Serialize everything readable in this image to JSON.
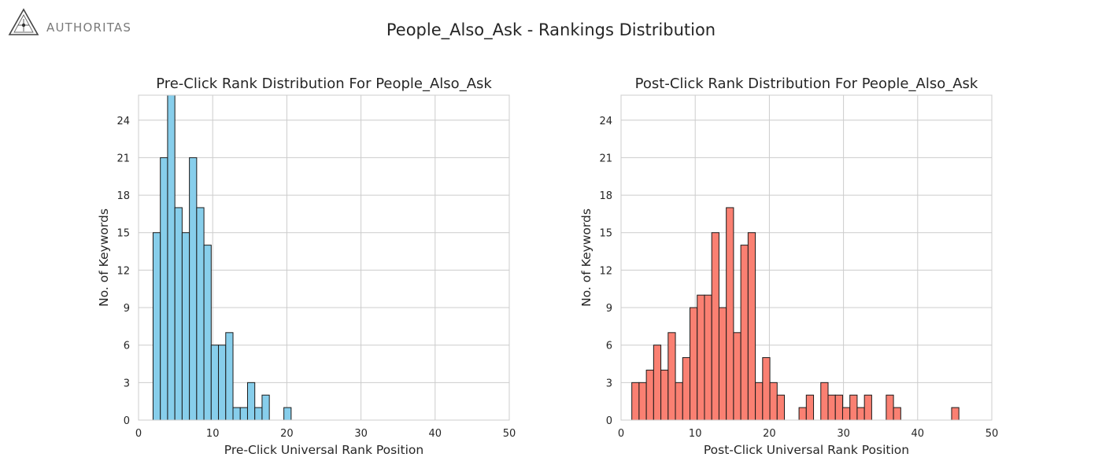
{
  "logo": {
    "text": "AUTHORITAS",
    "icon": "triangle-star-logo-icon"
  },
  "suptitle": "People_Also_Ask - Rankings Distribution",
  "chart_data": [
    {
      "type": "bar",
      "title": "Pre-Click Rank Distribution For People_Also_Ask",
      "xlabel": "Pre-Click Universal Rank Position",
      "ylabel": "No. of Keywords",
      "color": "#87ceeb",
      "xlim": [
        0,
        50
      ],
      "ylim": [
        0,
        26
      ],
      "xticks": [
        0,
        10,
        20,
        30,
        40,
        50
      ],
      "yticks": [
        0,
        3,
        6,
        9,
        12,
        15,
        18,
        21,
        24
      ],
      "grid": true,
      "bin_width": 0.98,
      "bins": [
        {
          "x": 1.96,
          "value": 15
        },
        {
          "x": 2.94,
          "value": 21
        },
        {
          "x": 3.92,
          "value": 26
        },
        {
          "x": 4.9,
          "value": 17
        },
        {
          "x": 5.88,
          "value": 15
        },
        {
          "x": 6.86,
          "value": 21
        },
        {
          "x": 7.84,
          "value": 17
        },
        {
          "x": 8.82,
          "value": 14
        },
        {
          "x": 9.8,
          "value": 6
        },
        {
          "x": 10.78,
          "value": 6
        },
        {
          "x": 11.76,
          "value": 7
        },
        {
          "x": 12.74,
          "value": 1
        },
        {
          "x": 13.72,
          "value": 1
        },
        {
          "x": 14.7,
          "value": 3
        },
        {
          "x": 15.68,
          "value": 1
        },
        {
          "x": 16.66,
          "value": 2
        },
        {
          "x": 19.6,
          "value": 1
        }
      ]
    },
    {
      "type": "bar",
      "title": "Post-Click Rank Distribution For People_Also_Ask",
      "xlabel": "Post-Click Universal Rank Position",
      "ylabel": "No. of Keywords",
      "color": "#fa8072",
      "xlim": [
        0,
        50
      ],
      "ylim": [
        0,
        26
      ],
      "xticks": [
        0,
        10,
        20,
        30,
        40,
        50
      ],
      "yticks": [
        0,
        3,
        6,
        9,
        12,
        15,
        18,
        21,
        24
      ],
      "grid": true,
      "bin_width": 0.98,
      "bins": [
        {
          "x": 1.45,
          "value": 3
        },
        {
          "x": 2.43,
          "value": 3
        },
        {
          "x": 3.41,
          "value": 4
        },
        {
          "x": 4.39,
          "value": 6
        },
        {
          "x": 5.37,
          "value": 4
        },
        {
          "x": 6.35,
          "value": 7
        },
        {
          "x": 7.33,
          "value": 3
        },
        {
          "x": 8.31,
          "value": 5
        },
        {
          "x": 9.29,
          "value": 9
        },
        {
          "x": 10.27,
          "value": 10
        },
        {
          "x": 11.25,
          "value": 10
        },
        {
          "x": 12.23,
          "value": 15
        },
        {
          "x": 13.21,
          "value": 9
        },
        {
          "x": 14.19,
          "value": 17
        },
        {
          "x": 15.17,
          "value": 7
        },
        {
          "x": 16.15,
          "value": 14
        },
        {
          "x": 17.13,
          "value": 15
        },
        {
          "x": 18.11,
          "value": 3
        },
        {
          "x": 19.09,
          "value": 5
        },
        {
          "x": 20.07,
          "value": 3
        },
        {
          "x": 21.05,
          "value": 2
        },
        {
          "x": 24.0,
          "value": 1
        },
        {
          "x": 24.98,
          "value": 2
        },
        {
          "x": 26.94,
          "value": 3
        },
        {
          "x": 27.92,
          "value": 2
        },
        {
          "x": 28.9,
          "value": 2
        },
        {
          "x": 29.88,
          "value": 1
        },
        {
          "x": 30.86,
          "value": 2
        },
        {
          "x": 31.84,
          "value": 1
        },
        {
          "x": 32.82,
          "value": 2
        },
        {
          "x": 35.76,
          "value": 2
        },
        {
          "x": 36.74,
          "value": 1
        },
        {
          "x": 44.58,
          "value": 1
        }
      ]
    }
  ]
}
